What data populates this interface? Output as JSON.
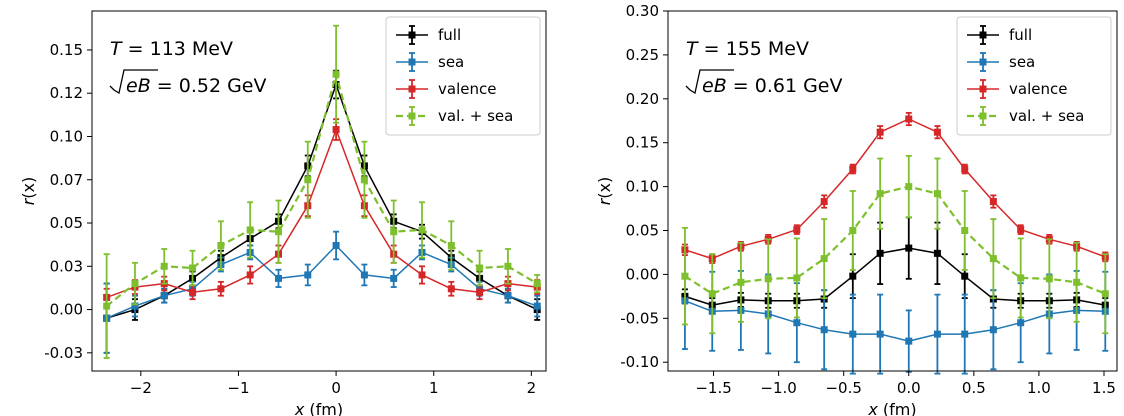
{
  "chart_data": [
    {
      "type": "line",
      "annotations": {
        "temperature": {
          "var": "T",
          "rest": " = 113 MeV"
        },
        "field": {
          "var": "eB",
          "rest": " = 0.52 GeV"
        }
      },
      "xlabel": {
        "var": "x",
        "unit": " (fm)"
      },
      "ylabel": {
        "var": "r",
        "arg": "(x)"
      },
      "xlim": [
        -2.5,
        2.15
      ],
      "ylim": [
        -0.0355,
        0.1725
      ],
      "xticks": [
        -2,
        -1,
        0,
        1,
        2
      ],
      "xtick_labels": [
        "−2",
        "−1",
        "0",
        "1",
        "2"
      ],
      "yticks": [
        -0.025,
        0.0,
        0.025,
        0.05,
        0.075,
        0.1,
        0.125,
        0.15
      ],
      "ytick_labels": [
        "-0.03",
        "0.00",
        "0.03",
        "0.05",
        "0.07",
        "0.10",
        "0.12",
        "0.15"
      ],
      "legend_position": "top-right",
      "x": [
        -2.35,
        -2.06,
        -1.76,
        -1.47,
        -1.18,
        -0.88,
        -0.59,
        -0.29,
        0.0,
        0.29,
        0.59,
        0.88,
        1.18,
        1.47,
        1.76,
        2.06
      ],
      "series": [
        {
          "name": "full",
          "color": "#000000",
          "dash": false,
          "values": [
            -0.005,
            0.0,
            0.008,
            0.018,
            0.03,
            0.041,
            0.051,
            0.083,
            0.13,
            0.083,
            0.051,
            0.045,
            0.03,
            0.018,
            0.008,
            0.0
          ],
          "errors": [
            0.02,
            0.006,
            0.004,
            0.004,
            0.004,
            0.004,
            0.004,
            0.006,
            0.008,
            0.006,
            0.004,
            0.004,
            0.004,
            0.004,
            0.004,
            0.006
          ]
        },
        {
          "name": "sea",
          "color": "#1f77b4",
          "dash": false,
          "values": [
            -0.005,
            0.002,
            0.008,
            0.012,
            0.026,
            0.033,
            0.018,
            0.02,
            0.037,
            0.02,
            0.018,
            0.033,
            0.026,
            0.012,
            0.008,
            0.002
          ],
          "errors": [
            0.02,
            0.006,
            0.004,
            0.004,
            0.004,
            0.004,
            0.005,
            0.006,
            0.008,
            0.006,
            0.005,
            0.004,
            0.004,
            0.004,
            0.004,
            0.006
          ]
        },
        {
          "name": "valence",
          "color": "#d62728",
          "dash": false,
          "values": [
            0.007,
            0.013,
            0.015,
            0.01,
            0.012,
            0.02,
            0.032,
            0.06,
            0.104,
            0.06,
            0.032,
            0.02,
            0.012,
            0.01,
            0.015,
            0.013
          ],
          "errors": [
            0.005,
            0.004,
            0.004,
            0.004,
            0.004,
            0.005,
            0.005,
            0.006,
            0.006,
            0.006,
            0.005,
            0.005,
            0.004,
            0.004,
            0.004,
            0.004
          ]
        },
        {
          "name": "val. + sea",
          "color": "#7ebf2e",
          "dash": true,
          "values": [
            0.002,
            0.015,
            0.025,
            0.024,
            0.037,
            0.046,
            0.045,
            0.075,
            0.136,
            0.075,
            0.045,
            0.046,
            0.037,
            0.024,
            0.025,
            0.015
          ],
          "errors": [
            0.03,
            0.012,
            0.01,
            0.01,
            0.014,
            0.016,
            0.018,
            0.022,
            0.028,
            0.022,
            0.018,
            0.016,
            0.014,
            0.01,
            0.01,
            0.005
          ]
        }
      ]
    },
    {
      "type": "line",
      "annotations": {
        "temperature": {
          "var": "T",
          "rest": " = 155 MeV"
        },
        "field": {
          "var": "eB",
          "rest": " = 0.61 GeV"
        }
      },
      "xlabel": {
        "var": "x",
        "unit": " (fm)"
      },
      "ylabel": {
        "var": "r",
        "arg": "(x)"
      },
      "xlim": [
        -1.85,
        1.6
      ],
      "ylim": [
        -0.11,
        0.3
      ],
      "xticks": [
        -1.5,
        -1.0,
        -0.5,
        0.0,
        0.5,
        1.0,
        1.5
      ],
      "xtick_labels": [
        "−1.5",
        "−1.0",
        "−0.5",
        "0.0",
        "0.5",
        "1.0",
        "1.5"
      ],
      "yticks": [
        -0.1,
        -0.05,
        0.0,
        0.05,
        0.1,
        0.15,
        0.2,
        0.25,
        0.3
      ],
      "ytick_labels": [
        "-0.10",
        "-0.05",
        "0.00",
        "0.05",
        "0.10",
        "0.15",
        "0.20",
        "0.25",
        "0.30"
      ],
      "legend_position": "top-right",
      "x": [
        -1.72,
        -1.51,
        -1.29,
        -1.08,
        -0.86,
        -0.65,
        -0.43,
        -0.22,
        0.0,
        0.22,
        0.43,
        0.65,
        0.86,
        1.08,
        1.29,
        1.51
      ],
      "series": [
        {
          "name": "full",
          "color": "#000000",
          "dash": false,
          "values": [
            -0.025,
            -0.035,
            -0.029,
            -0.03,
            -0.03,
            -0.028,
            -0.002,
            0.024,
            0.03,
            0.024,
            -0.002,
            -0.028,
            -0.03,
            -0.03,
            -0.029,
            -0.035
          ],
          "errors": [
            0.008,
            0.008,
            0.008,
            0.008,
            0.008,
            0.01,
            0.025,
            0.035,
            0.035,
            0.035,
            0.025,
            0.01,
            0.008,
            0.008,
            0.008,
            0.008
          ]
        },
        {
          "name": "sea",
          "color": "#1f77b4",
          "dash": false,
          "values": [
            -0.03,
            -0.042,
            -0.041,
            -0.045,
            -0.055,
            -0.063,
            -0.068,
            -0.068,
            -0.076,
            -0.068,
            -0.068,
            -0.063,
            -0.055,
            -0.045,
            -0.041,
            -0.042
          ],
          "errors": [
            0.055,
            0.045,
            0.045,
            0.045,
            0.045,
            0.045,
            0.045,
            0.045,
            0.035,
            0.045,
            0.045,
            0.045,
            0.045,
            0.045,
            0.045,
            0.045
          ]
        },
        {
          "name": "valence",
          "color": "#d62728",
          "dash": false,
          "values": [
            0.028,
            0.018,
            0.032,
            0.04,
            0.051,
            0.083,
            0.12,
            0.162,
            0.177,
            0.162,
            0.12,
            0.083,
            0.051,
            0.04,
            0.032,
            0.02
          ],
          "errors": [
            0.006,
            0.005,
            0.005,
            0.005,
            0.005,
            0.007,
            0.005,
            0.007,
            0.007,
            0.007,
            0.005,
            0.007,
            0.005,
            0.005,
            0.005,
            0.005
          ]
        },
        {
          "name": "val. + sea",
          "color": "#7ebf2e",
          "dash": true,
          "values": [
            -0.002,
            -0.022,
            -0.009,
            -0.005,
            -0.004,
            0.018,
            0.05,
            0.092,
            0.1,
            0.092,
            0.05,
            0.018,
            -0.004,
            -0.005,
            -0.009,
            -0.022
          ],
          "errors": [
            0.055,
            0.045,
            0.045,
            0.045,
            0.045,
            0.045,
            0.045,
            0.04,
            0.035,
            0.04,
            0.045,
            0.045,
            0.045,
            0.045,
            0.045,
            0.045
          ]
        }
      ]
    }
  ]
}
